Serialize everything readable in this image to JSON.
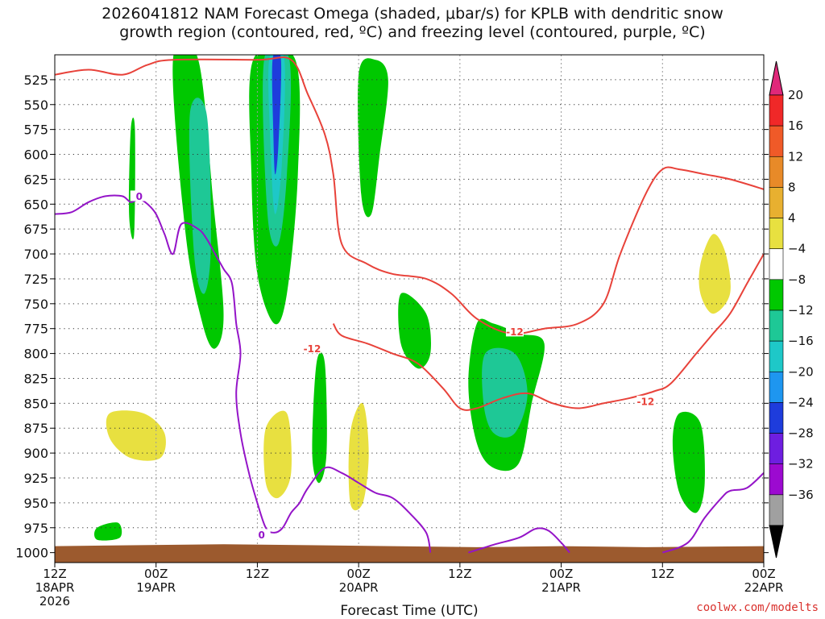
{
  "title": {
    "line1": "2026041812 NAM Forecast Omega (shaded, μbar/s) for KPLB with dendritic snow",
    "line2": "growth region (contoured, red, ºC) and freezing level (contoured, purple, ºC)"
  },
  "watermark": "coolwx.com/modelts",
  "colors": {
    "dgz": "#e8423a",
    "freezing": "#9414c8",
    "ground": "#9c5a2e",
    "grid": "#9a9a9a"
  },
  "chart_data": {
    "type": "heatmap",
    "title": "2026041812 NAM Forecast Omega (shaded, μbar/s) for KPLB with dendritic snow growth region (contoured, red, ºC) and freezing level (contoured, purple, ºC)",
    "xlabel": "Forecast Time (UTC)",
    "ylabel": "",
    "x_ticks": [
      {
        "hour": 0,
        "lines": [
          "12Z",
          "18APR",
          "2026"
        ]
      },
      {
        "hour": 12,
        "lines": [
          "00Z",
          "19APR"
        ]
      },
      {
        "hour": 24,
        "lines": [
          "12Z"
        ]
      },
      {
        "hour": 36,
        "lines": [
          "00Z",
          "20APR"
        ]
      },
      {
        "hour": 48,
        "lines": [
          "12Z"
        ]
      },
      {
        "hour": 60,
        "lines": [
          "00Z",
          "21APR"
        ]
      },
      {
        "hour": 72,
        "lines": [
          "12Z"
        ]
      },
      {
        "hour": 84,
        "lines": [
          "00Z",
          "22APR"
        ]
      }
    ],
    "xlim": [
      0,
      84
    ],
    "y_ticks": [
      525,
      550,
      575,
      600,
      625,
      650,
      675,
      700,
      725,
      750,
      775,
      800,
      825,
      850,
      875,
      900,
      925,
      950,
      975,
      1000
    ],
    "ylim": [
      1010,
      500
    ],
    "grid": true,
    "colorbar": {
      "labels": [
        "20",
        "16",
        "12",
        "8",
        "4",
        "−4",
        "−8",
        "−12",
        "−16",
        "−20",
        "−24",
        "−28",
        "−32",
        "−36"
      ],
      "colors": [
        "#f02828",
        "#f05a28",
        "#e88a28",
        "#e8b030",
        "#e8e040",
        "#ffffff",
        "#00c800",
        "#1ec896",
        "#1ec8c8",
        "#1e96f0",
        "#1e3cdc",
        "#6e1ee0",
        "#9c0ad0",
        "#a0a0a0"
      ],
      "top_arrow": "#e0287a",
      "bottom_arrow": "#000000"
    },
    "omega_regions": [
      {
        "band": "-4",
        "pts": [
          [
            12.5,
            505
          ],
          [
            17.5,
            505
          ],
          [
            19.5,
            660
          ],
          [
            21,
            760
          ],
          [
            20.5,
            805
          ],
          [
            19.5,
            825
          ],
          [
            18.5,
            800
          ],
          [
            16.5,
            760
          ],
          [
            15.5,
            660
          ],
          [
            13.5,
            640
          ]
        ]
      },
      {
        "band": "-4",
        "pts": [
          [
            22,
            505
          ],
          [
            29,
            505
          ],
          [
            29.5,
            600
          ],
          [
            28.5,
            720
          ],
          [
            27,
            760
          ],
          [
            25,
            820
          ],
          [
            23.5,
            760
          ],
          [
            22.5,
            650
          ]
        ]
      },
      {
        "band": "-4",
        "pts": [
          [
            35.5,
            505
          ],
          [
            36.5,
            505
          ],
          [
            35.5,
            600
          ],
          [
            34.8,
            700
          ],
          [
            34.2,
            640
          ],
          [
            34.5,
            580
          ]
        ]
      },
      {
        "band": "-8",
        "pts": [
          [
            14,
            505
          ],
          [
            17,
            505
          ],
          [
            18.8,
            650
          ],
          [
            20,
            760
          ],
          [
            19,
            795
          ],
          [
            17.5,
            770
          ],
          [
            15.5,
            680
          ]
        ]
      },
      {
        "band": "-8",
        "pts": [
          [
            23.5,
            505
          ],
          [
            28.5,
            505
          ],
          [
            28.8,
            620
          ],
          [
            27.5,
            740
          ],
          [
            26,
            770
          ],
          [
            24,
            720
          ],
          [
            23.3,
            620
          ]
        ]
      },
      {
        "band": "-12",
        "pts": [
          [
            16,
            560
          ],
          [
            18,
            560
          ],
          [
            18.5,
            690
          ],
          [
            17.7,
            740
          ],
          [
            16.5,
            700
          ]
        ]
      },
      {
        "band": "-12",
        "pts": [
          [
            24.8,
            505
          ],
          [
            27.8,
            505
          ],
          [
            27.5,
            620
          ],
          [
            26.5,
            690
          ],
          [
            25.2,
            660
          ]
        ]
      },
      {
        "band": "-16",
        "pts": [
          [
            25.4,
            505
          ],
          [
            27.2,
            505
          ],
          [
            26.9,
            610
          ],
          [
            26.1,
            660
          ],
          [
            25.6,
            600
          ]
        ]
      },
      {
        "band": "-24",
        "pts": [
          [
            25.8,
            505
          ],
          [
            26.8,
            505
          ],
          [
            26.5,
            590
          ],
          [
            26.1,
            620
          ],
          [
            25.9,
            580
          ]
        ]
      },
      {
        "band": "-4",
        "pts": [
          [
            3.5,
            800
          ],
          [
            8,
            790
          ],
          [
            12,
            805
          ],
          [
            15,
            830
          ],
          [
            14.5,
            900
          ],
          [
            11,
            915
          ],
          [
            5,
            915
          ],
          [
            0.7,
            910
          ],
          [
            0.7,
            840
          ]
        ]
      },
      {
        "band": "4",
        "pts": [
          [
            6.5,
            860
          ],
          [
            10.5,
            860
          ],
          [
            13,
            880
          ],
          [
            12.5,
            905
          ],
          [
            9,
            905
          ],
          [
            6.5,
            885
          ]
        ]
      },
      {
        "band": "-4",
        "pts": [
          [
            24,
            850
          ],
          [
            27,
            830
          ],
          [
            29,
            860
          ],
          [
            28.8,
            960
          ],
          [
            26,
            975
          ],
          [
            23.5,
            970
          ]
        ]
      },
      {
        "band": "4",
        "pts": [
          [
            25,
            875
          ],
          [
            27.5,
            860
          ],
          [
            28,
            920
          ],
          [
            26.5,
            945
          ],
          [
            25,
            930
          ]
        ]
      },
      {
        "band": "-4",
        "pts": [
          [
            33.5,
            890
          ],
          [
            35.5,
            770
          ],
          [
            37,
            780
          ],
          [
            38,
            860
          ],
          [
            44,
            930
          ],
          [
            47,
            960
          ],
          [
            47,
            980
          ],
          [
            42,
            985
          ],
          [
            35,
            985
          ],
          [
            32,
            980
          ]
        ]
      },
      {
        "band": "4",
        "pts": [
          [
            35,
            880
          ],
          [
            36.5,
            850
          ],
          [
            37.2,
            900
          ],
          [
            36.5,
            950
          ],
          [
            35,
            950
          ]
        ]
      },
      {
        "band": "-4",
        "pts": [
          [
            75,
            670
          ],
          [
            78,
            625
          ],
          [
            81,
            655
          ],
          [
            81.8,
            700
          ],
          [
            79,
            785
          ],
          [
            77,
            760
          ],
          [
            75,
            730
          ]
        ]
      },
      {
        "band": "4",
        "pts": [
          [
            76.5,
            710
          ],
          [
            78,
            680
          ],
          [
            79.5,
            700
          ],
          [
            80,
            740
          ],
          [
            78,
            760
          ],
          [
            76.5,
            740
          ]
        ]
      },
      {
        "band": "-4",
        "pts": [
          [
            59,
            910
          ],
          [
            60,
            920
          ],
          [
            60.2,
            970
          ],
          [
            59,
            975
          ],
          [
            58.6,
            930
          ]
        ]
      },
      {
        "band": "-4",
        "pts": [
          [
            44,
            600
          ],
          [
            45,
            600
          ],
          [
            44.5,
            660
          ],
          [
            44,
            650
          ]
        ]
      },
      {
        "band": "-8",
        "pts": [
          [
            50,
            770
          ],
          [
            52,
            770
          ],
          [
            55,
            780
          ],
          [
            58,
            790
          ],
          [
            56.5,
            850
          ],
          [
            55,
            910
          ],
          [
            52,
            915
          ],
          [
            50,
            890
          ],
          [
            49,
            830
          ]
        ]
      },
      {
        "band": "-12",
        "pts": [
          [
            51,
            800
          ],
          [
            54.5,
            800
          ],
          [
            56,
            840
          ],
          [
            54.5,
            880
          ],
          [
            52,
            880
          ],
          [
            50.8,
            850
          ]
        ]
      },
      {
        "band": "-8",
        "pts": [
          [
            41,
            740
          ],
          [
            44,
            760
          ],
          [
            44.5,
            800
          ],
          [
            43,
            815
          ],
          [
            41,
            790
          ]
        ]
      },
      {
        "band": "-8",
        "pts": [
          [
            36,
            520
          ],
          [
            38,
            505
          ],
          [
            39.5,
            525
          ],
          [
            38.5,
            600
          ],
          [
            37.5,
            660
          ],
          [
            36.3,
            640
          ]
        ]
      },
      {
        "band": "-8",
        "pts": [
          [
            74,
            860
          ],
          [
            76.5,
            870
          ],
          [
            77,
            930
          ],
          [
            76,
            960
          ],
          [
            74,
            940
          ],
          [
            73.2,
            890
          ]
        ]
      },
      {
        "band": "-8",
        "pts": [
          [
            31,
            810
          ],
          [
            32,
            810
          ],
          [
            32.2,
            900
          ],
          [
            31.3,
            930
          ],
          [
            30.5,
            900
          ]
        ]
      },
      {
        "band": "-8",
        "pts": [
          [
            9,
            575
          ],
          [
            9.5,
            575
          ],
          [
            9.4,
            680
          ],
          [
            8.8,
            660
          ]
        ]
      },
      {
        "band": "-8",
        "pts": [
          [
            5,
            975
          ],
          [
            7.5,
            970
          ],
          [
            7.7,
            985
          ],
          [
            5,
            987
          ]
        ]
      }
    ],
    "dgz_contours": [
      {
        "label": "-12",
        "pts": [
          [
            0,
            520
          ],
          [
            4,
            515
          ],
          [
            8,
            520
          ],
          [
            11,
            510
          ],
          [
            14,
            505
          ],
          [
            24,
            505
          ],
          [
            28,
            505
          ],
          [
            30,
            540
          ],
          [
            32,
            580
          ],
          [
            33,
            620
          ],
          [
            34,
            690
          ],
          [
            37,
            710
          ],
          [
            40,
            720
          ],
          [
            44,
            725
          ],
          [
            47,
            740
          ],
          [
            50,
            765
          ],
          [
            54,
            780
          ],
          [
            58,
            775
          ],
          [
            62,
            770
          ],
          [
            65,
            750
          ],
          [
            67,
            700
          ],
          [
            70,
            640
          ],
          [
            72,
            615
          ],
          [
            74,
            615
          ],
          [
            77,
            620
          ],
          [
            80,
            625
          ],
          [
            84,
            635
          ]
        ]
      },
      {
        "label": "-12",
        "pts": [
          [
            33,
            770
          ],
          [
            34,
            782
          ],
          [
            37,
            790
          ],
          [
            40,
            800
          ],
          [
            43,
            810
          ],
          [
            46,
            835
          ],
          [
            48,
            855
          ],
          [
            50,
            855
          ],
          [
            53,
            845
          ],
          [
            56,
            840
          ],
          [
            59,
            850
          ],
          [
            62,
            855
          ],
          [
            65,
            850
          ],
          [
            68,
            845
          ],
          [
            71,
            838
          ],
          [
            73,
            830
          ],
          [
            76,
            800
          ],
          [
            78,
            780
          ],
          [
            80,
            760
          ],
          [
            82,
            730
          ],
          [
            84,
            700
          ]
        ]
      }
    ],
    "freezing_contours": [
      {
        "label": "0",
        "pts": [
          [
            0,
            660
          ],
          [
            2,
            658
          ],
          [
            4,
            648
          ],
          [
            6,
            642
          ],
          [
            8,
            642
          ],
          [
            9,
            648
          ],
          [
            10,
            645
          ],
          [
            11,
            650
          ],
          [
            12,
            660
          ],
          [
            13,
            680
          ],
          [
            14,
            700
          ],
          [
            15,
            670
          ],
          [
            17,
            675
          ],
          [
            18,
            685
          ],
          [
            19,
            700
          ],
          [
            20,
            715
          ],
          [
            21,
            730
          ],
          [
            21.5,
            770
          ],
          [
            22,
            800
          ],
          [
            21.5,
            840
          ],
          [
            22,
            880
          ],
          [
            23,
            920
          ],
          [
            24,
            950
          ],
          [
            25,
            975
          ],
          [
            26,
            980
          ],
          [
            27,
            975
          ],
          [
            28,
            960
          ],
          [
            29,
            950
          ],
          [
            30,
            935
          ],
          [
            32,
            915
          ],
          [
            34,
            920
          ],
          [
            36,
            930
          ],
          [
            38,
            940
          ],
          [
            40,
            945
          ],
          [
            42,
            960
          ],
          [
            44,
            980
          ],
          [
            44.5,
            1000
          ]
        ]
      },
      {
        "label": "",
        "pts": [
          [
            49,
            1000
          ],
          [
            52,
            992
          ],
          [
            55,
            985
          ],
          [
            57,
            976
          ],
          [
            58.5,
            978
          ],
          [
            60,
            990
          ],
          [
            61,
            1000
          ]
        ]
      },
      {
        "label": "",
        "pts": [
          [
            72,
            1000
          ],
          [
            75,
            990
          ],
          [
            77,
            965
          ],
          [
            79,
            945
          ],
          [
            80,
            938
          ],
          [
            82,
            935
          ],
          [
            84,
            920
          ]
        ]
      }
    ]
  }
}
